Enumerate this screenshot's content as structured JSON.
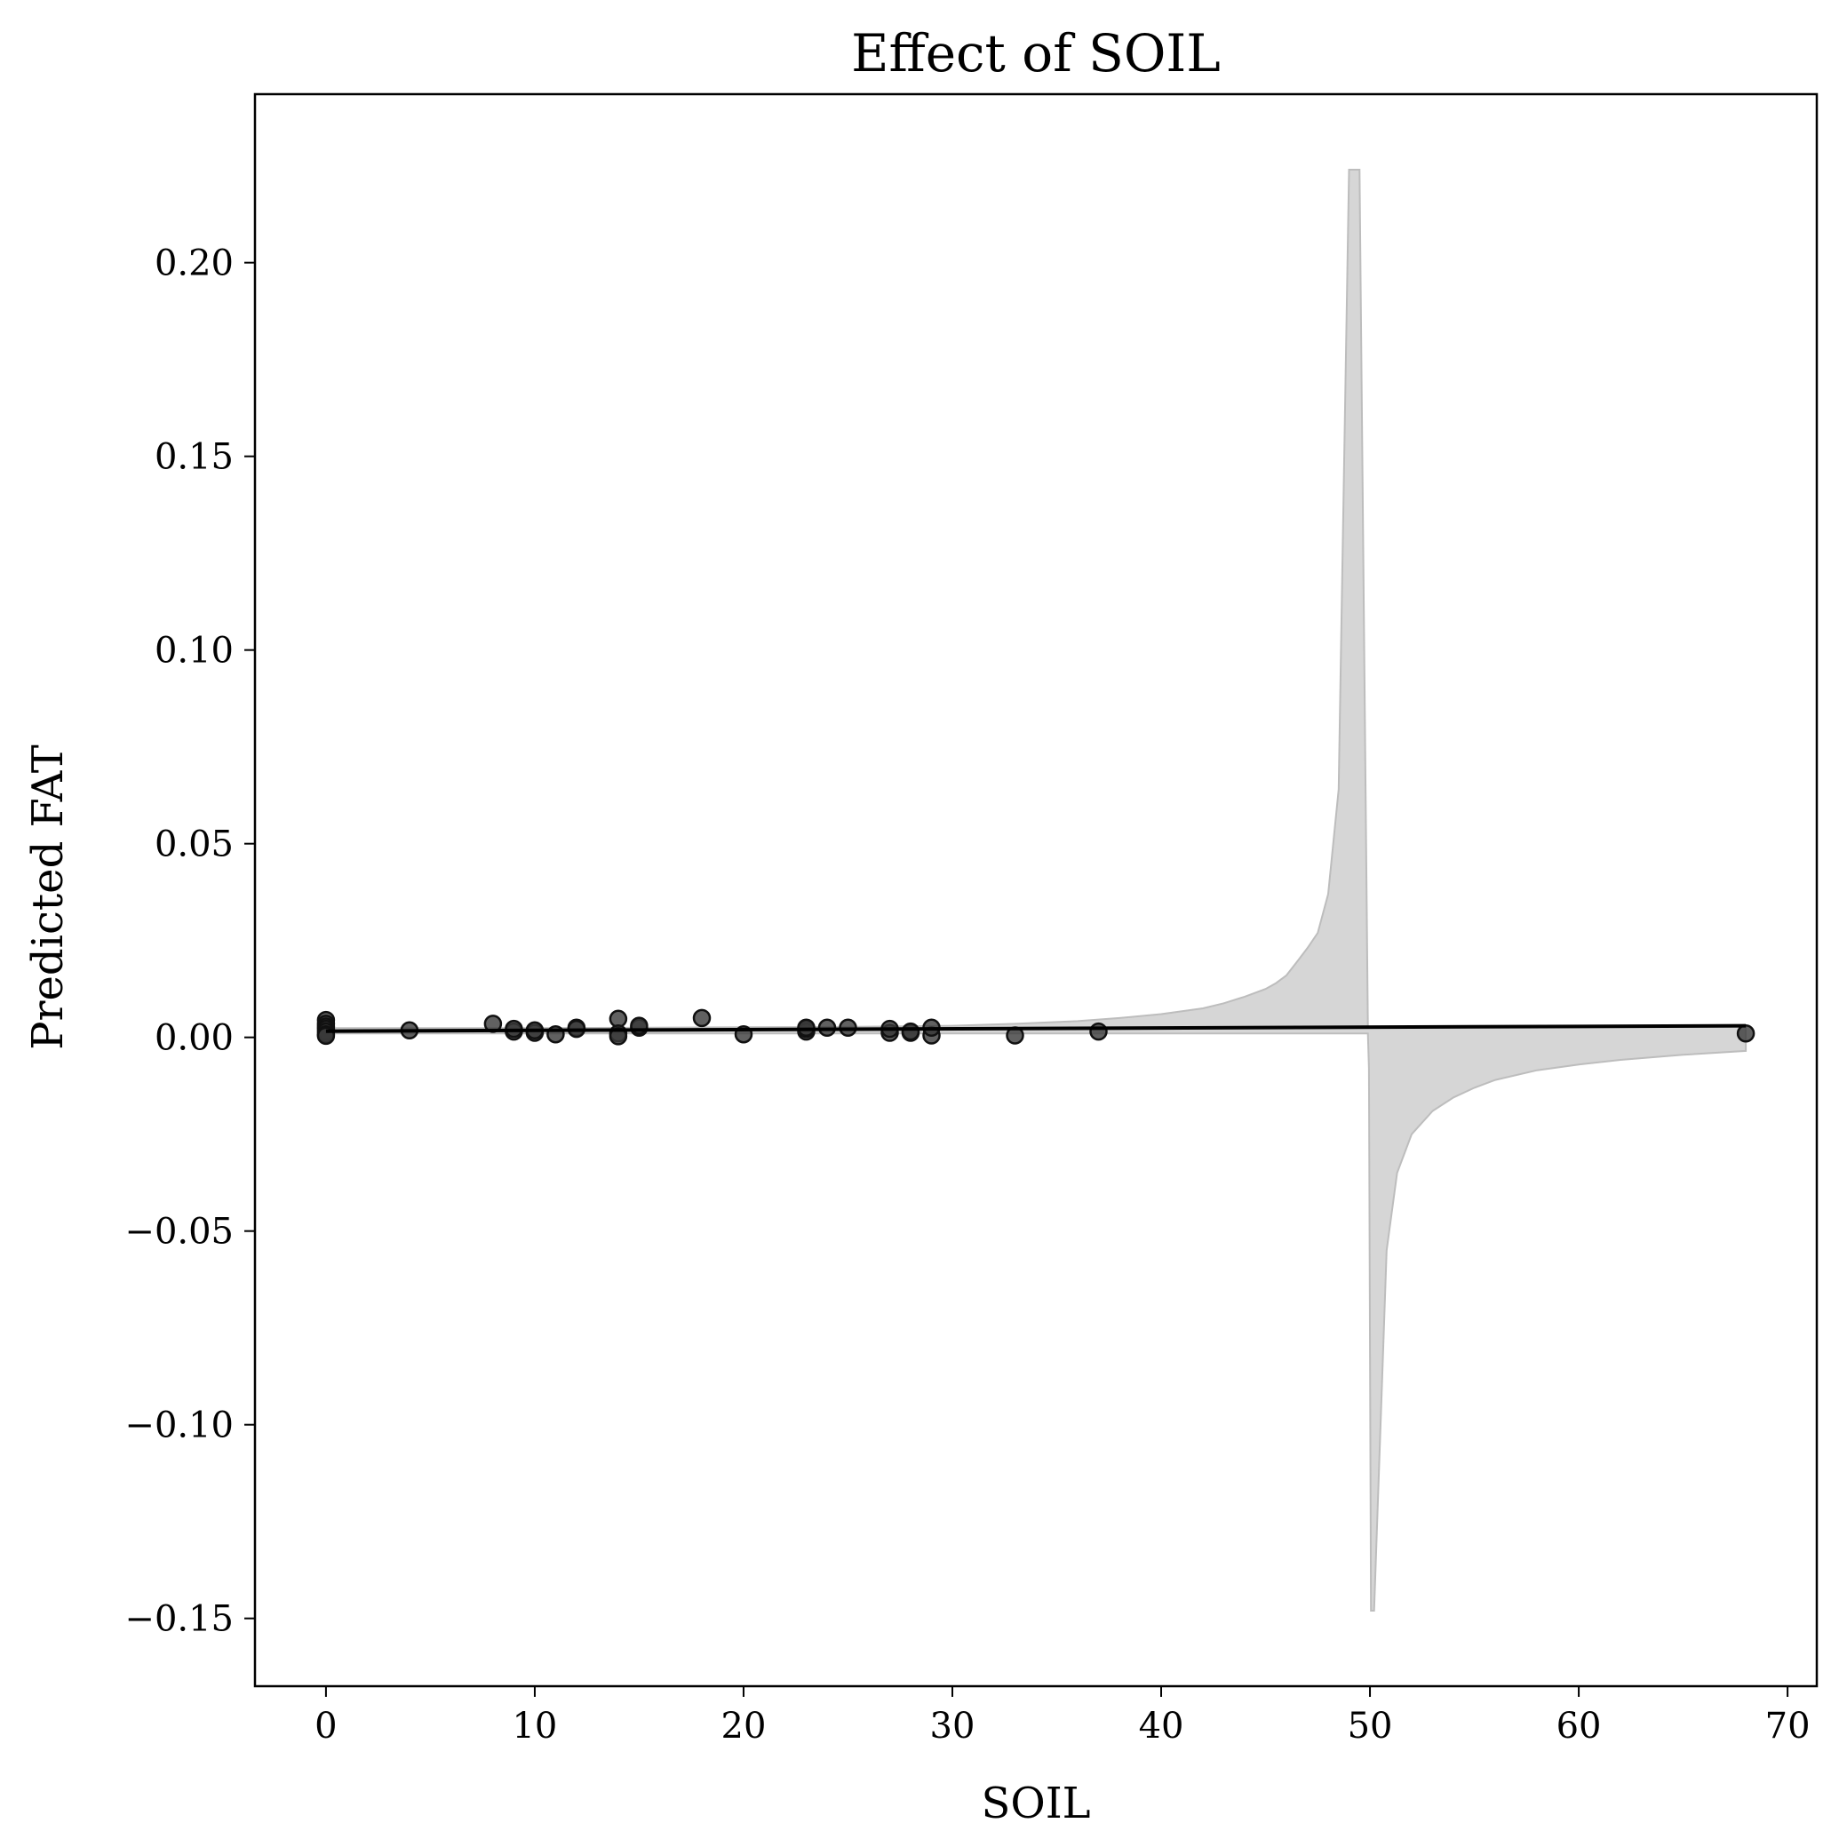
{
  "chart_data": {
    "type": "scatter",
    "title": "Effect of SOIL",
    "xlabel": "SOIL",
    "ylabel": "Predicted FAT",
    "xlim": [
      -3.4,
      71.4
    ],
    "ylim": [
      -0.1675,
      0.2435
    ],
    "xticks": [
      0,
      10,
      20,
      30,
      40,
      50,
      60,
      70
    ],
    "xtick_labels": [
      "0",
      "10",
      "20",
      "30",
      "40",
      "50",
      "60",
      "70"
    ],
    "yticks": [
      -0.15,
      -0.1,
      -0.05,
      0.0,
      0.05,
      0.1,
      0.15,
      0.2
    ],
    "ytick_labels": [
      "−0.15",
      "−0.10",
      "−0.05",
      "0.00",
      "0.05",
      "0.10",
      "0.15",
      "0.20"
    ],
    "grid": false,
    "legend": "none",
    "colors": {
      "points": "#3a3a3a",
      "points_edge": "#111111",
      "fit_line": "#000000",
      "band": "#d6d6d6",
      "band_edge": "#bdbdbd"
    },
    "scatter": {
      "x": [
        0,
        0,
        0,
        0,
        0,
        0,
        0,
        4,
        8,
        9,
        9,
        10,
        10,
        11,
        12,
        12,
        14,
        14,
        14,
        15,
        15,
        18,
        20,
        23,
        23,
        23,
        24,
        25,
        27,
        27,
        28,
        28,
        29,
        29,
        33,
        37,
        68
      ],
      "y": [
        0.0045,
        0.0035,
        0.0028,
        0.0022,
        0.0015,
        0.0008,
        0.0004,
        0.0018,
        0.0035,
        0.0015,
        0.0022,
        0.0012,
        0.0018,
        0.0008,
        0.0025,
        0.0022,
        0.0048,
        0.001,
        0.0003,
        0.0025,
        0.003,
        0.005,
        0.0008,
        0.0015,
        0.0022,
        0.0025,
        0.0025,
        0.0025,
        0.0012,
        0.0022,
        0.0012,
        0.0015,
        0.0005,
        0.0025,
        0.0005,
        0.0015,
        0.001
      ]
    },
    "fit_line": {
      "x": [
        0,
        68
      ],
      "y": [
        0.0016,
        0.003
      ]
    },
    "confidence_band": {
      "x": [
        0,
        10,
        20,
        25,
        30,
        33,
        36,
        38,
        40,
        42,
        43,
        44,
        45,
        45.5,
        46,
        46.5,
        47,
        47.5,
        48,
        48.5,
        49,
        49.5,
        49.9,
        49.95,
        50.05,
        50.2,
        50.8,
        51.3,
        52,
        53,
        54,
        55,
        56,
        58,
        60,
        62,
        65,
        68
      ],
      "upper": [
        0.0024,
        0.0024,
        0.0026,
        0.0027,
        0.003,
        0.0035,
        0.0042,
        0.005,
        0.006,
        0.0075,
        0.0088,
        0.0105,
        0.0125,
        0.014,
        0.016,
        0.0195,
        0.023,
        0.027,
        0.037,
        0.064,
        0.224,
        0.224,
        0.003,
        0.0025,
        0.0025,
        0.0025,
        0.0026,
        0.0026,
        0.0027,
        0.0027,
        0.0028,
        0.0028,
        0.0028,
        0.0029,
        0.003,
        0.003,
        0.0031,
        0.0031
      ],
      "lower": [
        0.001,
        0.001,
        0.001,
        0.001,
        0.001,
        0.001,
        0.001,
        0.001,
        0.001,
        0.001,
        0.001,
        0.001,
        0.001,
        0.001,
        0.001,
        0.001,
        0.001,
        0.001,
        0.001,
        0.001,
        0.001,
        0.001,
        0.001,
        -0.008,
        -0.148,
        -0.148,
        -0.055,
        -0.035,
        -0.025,
        -0.019,
        -0.0155,
        -0.013,
        -0.011,
        -0.0085,
        -0.007,
        -0.0058,
        -0.0045,
        -0.0035
      ]
    }
  }
}
